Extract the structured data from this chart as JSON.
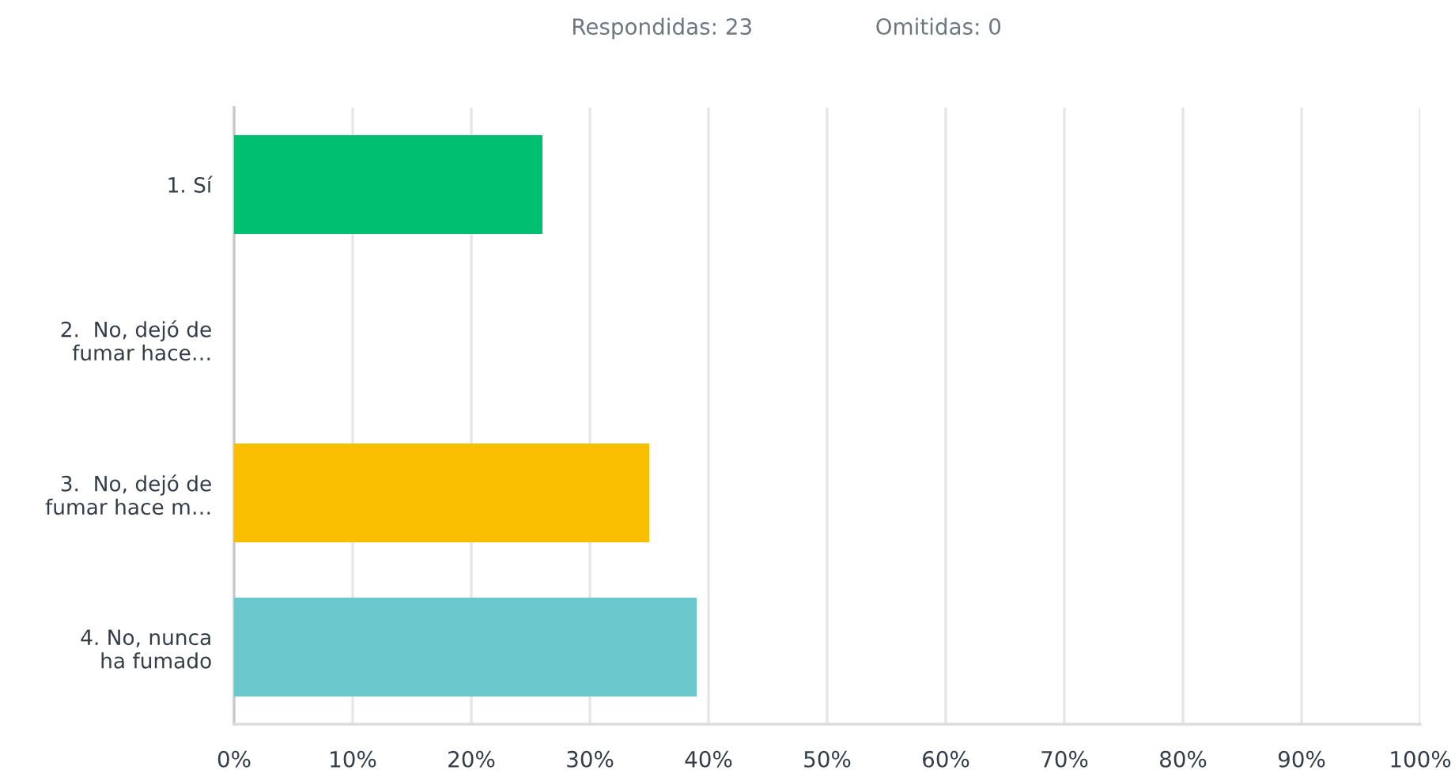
{
  "chart_data": {
    "type": "bar",
    "orientation": "horizontal",
    "annotations": [
      "Respondidas: 23",
      "Omitidas: 0"
    ],
    "categories": [
      "1. Sí",
      "2.  No, dejó de\nfumar hace…",
      "3.  No, dejó de\nfumar hace m…",
      "4. No, nunca\nha fumado"
    ],
    "values": [
      26,
      0,
      35,
      39
    ],
    "colors": [
      "#00bf6f",
      "#507cb6",
      "#f9be00",
      "#6bc8cd"
    ],
    "xlim": [
      0,
      100
    ],
    "xticks": [
      {
        "value": 0,
        "label": "0%"
      },
      {
        "value": 10,
        "label": "10%"
      },
      {
        "value": 20,
        "label": "20%"
      },
      {
        "value": 30,
        "label": "30%"
      },
      {
        "value": 40,
        "label": "40%"
      },
      {
        "value": 50,
        "label": "50%"
      },
      {
        "value": 60,
        "label": "60%"
      },
      {
        "value": 70,
        "label": "70%"
      },
      {
        "value": 80,
        "label": "80%"
      },
      {
        "value": 90,
        "label": "90%"
      },
      {
        "value": 100,
        "label": "100%"
      }
    ],
    "grid": "x"
  }
}
